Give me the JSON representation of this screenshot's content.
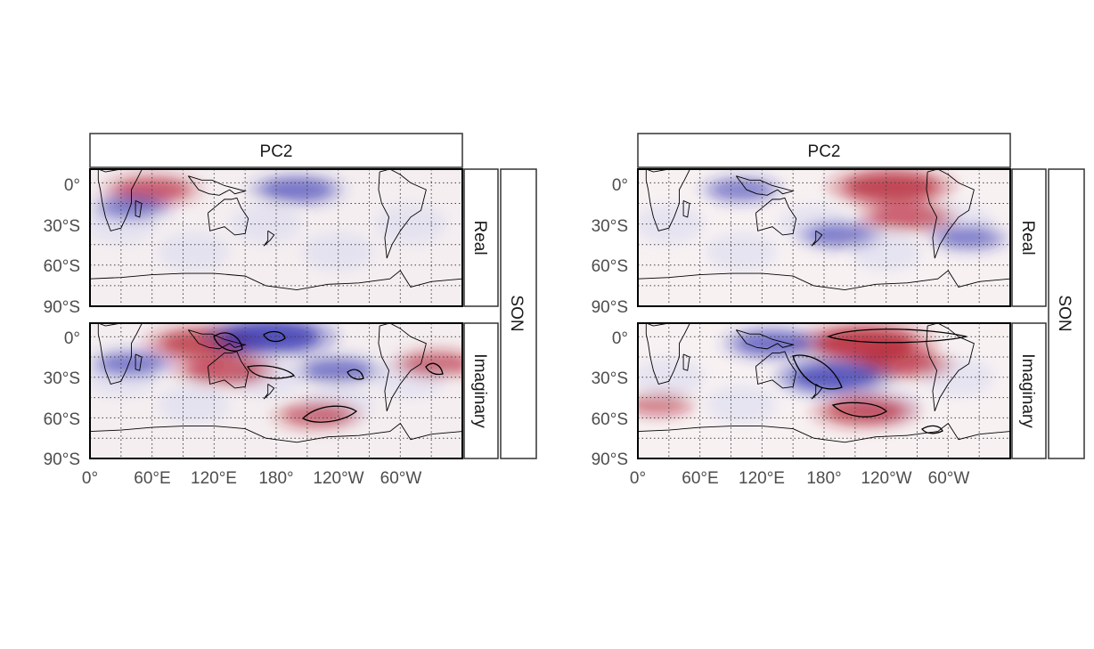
{
  "chart_data": [
    {
      "type": "heatmap",
      "facet_column_label": "PC2",
      "facet_rows": [
        "Real",
        "Imaginary"
      ],
      "season": "SON",
      "xaxis_ticks": [
        "0°",
        "60°E",
        "120°E",
        "180°",
        "120°W",
        "60°W"
      ],
      "yaxis_ticks": [
        "0°",
        "30°S",
        "60°S",
        "90°S"
      ],
      "xlim": [
        0,
        360
      ],
      "ylim": [
        -90,
        10
      ],
      "grid": true,
      "anomalies": {
        "Real": [
          {
            "lon": 60,
            "lat": -5,
            "sign": "positive",
            "strength": 0.5
          },
          {
            "lon": 200,
            "lat": -5,
            "sign": "negative",
            "strength": 0.45
          },
          {
            "lon": 40,
            "lat": -18,
            "sign": "negative",
            "strength": 0.3
          }
        ],
        "Imaginary": [
          {
            "lon": 110,
            "lat": -5,
            "sign": "positive",
            "strength": 0.7
          },
          {
            "lon": 130,
            "lat": -25,
            "sign": "positive",
            "strength": 0.55
          },
          {
            "lon": 175,
            "lat": 0,
            "sign": "negative",
            "strength": 0.85
          },
          {
            "lon": 240,
            "lat": -25,
            "sign": "negative",
            "strength": 0.4
          },
          {
            "lon": 220,
            "lat": -58,
            "sign": "positive",
            "strength": 0.4
          },
          {
            "lon": 335,
            "lat": -20,
            "sign": "positive",
            "strength": 0.4
          },
          {
            "lon": 40,
            "lat": -20,
            "sign": "negative",
            "strength": 0.35
          }
        ]
      }
    },
    {
      "type": "heatmap",
      "facet_column_label": "PC2",
      "facet_rows": [
        "Real",
        "Imaginary"
      ],
      "season": "SON",
      "xaxis_ticks": [
        "0°",
        "60°E",
        "120°E",
        "180°",
        "120°W",
        "60°W"
      ],
      "yaxis_ticks": [
        "0°",
        "30°S",
        "60°S",
        "90°S"
      ],
      "xlim": [
        0,
        360
      ],
      "ylim": [
        -90,
        10
      ],
      "grid": true,
      "anomalies": {
        "Real": [
          {
            "lon": 245,
            "lat": -3,
            "sign": "positive",
            "strength": 0.8
          },
          {
            "lon": 260,
            "lat": -25,
            "sign": "positive",
            "strength": 0.5
          },
          {
            "lon": 195,
            "lat": -38,
            "sign": "negative",
            "strength": 0.35
          },
          {
            "lon": 100,
            "lat": -5,
            "sign": "negative",
            "strength": 0.3
          },
          {
            "lon": 320,
            "lat": -40,
            "sign": "negative",
            "strength": 0.3
          }
        ],
        "Imaginary": [
          {
            "lon": 220,
            "lat": -5,
            "sign": "positive",
            "strength": 0.9
          },
          {
            "lon": 255,
            "lat": -20,
            "sign": "positive",
            "strength": 0.55
          },
          {
            "lon": 190,
            "lat": -30,
            "sign": "negative",
            "strength": 0.7
          },
          {
            "lon": 130,
            "lat": -5,
            "sign": "negative",
            "strength": 0.5
          },
          {
            "lon": 220,
            "lat": -55,
            "sign": "positive",
            "strength": 0.6
          },
          {
            "lon": 20,
            "lat": -50,
            "sign": "positive",
            "strength": 0.25
          }
        ]
      }
    }
  ],
  "colors": {
    "positive": "#b2182b",
    "negative": "#2b2cb0",
    "background": "#f4eef0",
    "frame": "#000000",
    "strip_border": "#333333",
    "tick_text": "#4d4d4d"
  }
}
